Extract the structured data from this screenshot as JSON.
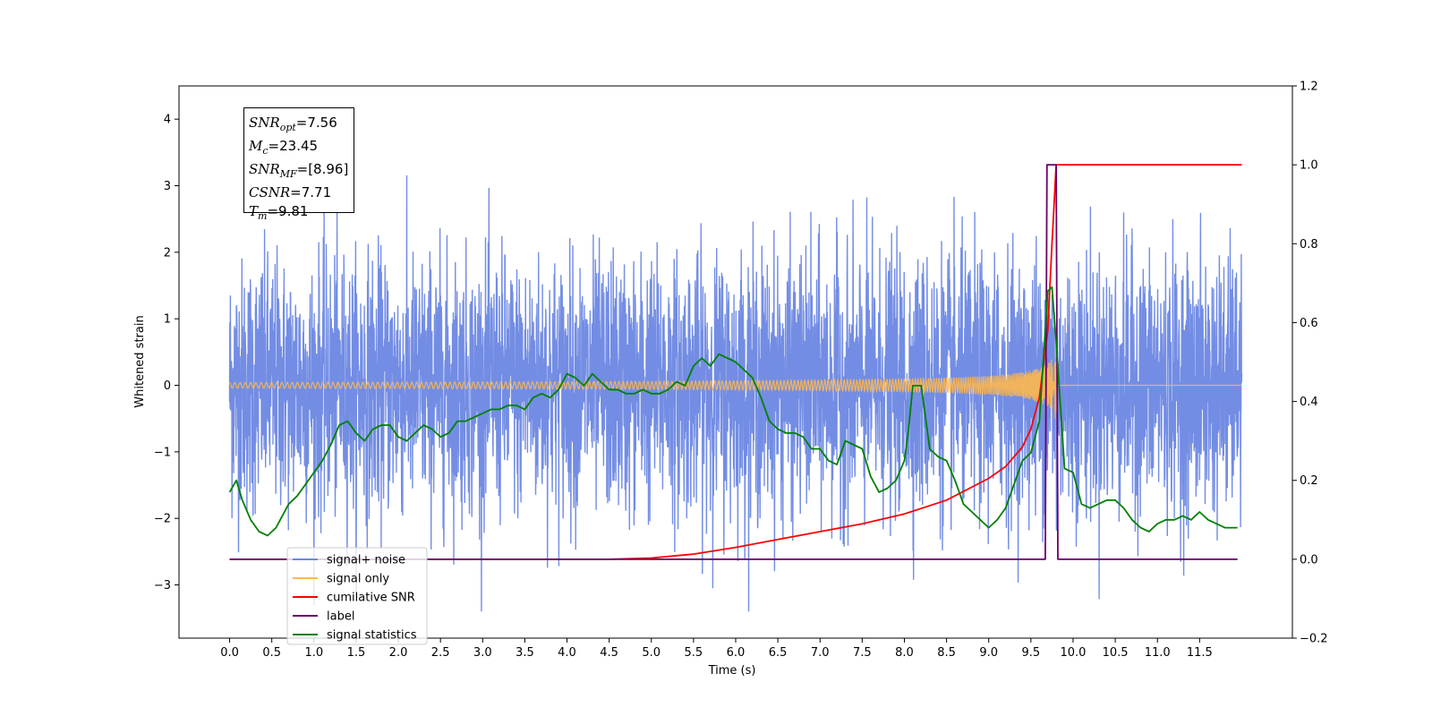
{
  "chart_data": {
    "type": "line",
    "xlabel": "Time (s)",
    "ylabel_left": "Whitened strain",
    "x_ticks": [
      0.0,
      0.5,
      1.0,
      1.5,
      2.0,
      2.5,
      3.0,
      3.5,
      4.0,
      4.5,
      5.0,
      5.5,
      6.0,
      6.5,
      7.0,
      7.5,
      8.0,
      8.5,
      9.0,
      9.5,
      10.0,
      10.5,
      11.0,
      11.5
    ],
    "x_tick_labels": [
      "0.0",
      "0.5",
      "1.0",
      "1.5",
      "2.0",
      "2.5",
      "3.0",
      "3.5",
      "4.0",
      "4.5",
      "5.0",
      "5.5",
      "6.0",
      "6.5",
      "7.0",
      "7.5",
      "8.0",
      "8.5",
      "9.0",
      "9.5",
      "10.0",
      "10.5",
      "11.0",
      "11.5"
    ],
    "xlim": [
      -0.6,
      12.6
    ],
    "y_left_ticks": [
      -3,
      -2,
      -1,
      0,
      1,
      2,
      3,
      4
    ],
    "y_left_tick_labels": [
      "−3",
      "−2",
      "−1",
      "0",
      "1",
      "2",
      "3",
      "4"
    ],
    "y_left_lim": [
      -3.8,
      4.5
    ],
    "y_right_ticks": [
      -0.2,
      0.0,
      0.2,
      0.4,
      0.6,
      0.8,
      1.0,
      1.2
    ],
    "y_right_tick_labels": [
      "−0.2",
      "0.0",
      "0.2",
      "0.4",
      "0.6",
      "0.8",
      "1.0",
      "1.2"
    ],
    "y_right_lim": [
      -0.2,
      1.2
    ],
    "legend": {
      "placement": "lower-left",
      "entries": [
        {
          "label": "signal+ noise",
          "color": "#6b87e3"
        },
        {
          "label": "signal only",
          "color": "#ffb74d"
        },
        {
          "label": "cumilative SNR",
          "color": "#ff0000"
        },
        {
          "label": "label",
          "color": "#6a006a"
        },
        {
          "label": "signal statistics",
          "color": "#008000"
        }
      ]
    },
    "annotation": {
      "snr_opt": "7.56",
      "mc": "23.45",
      "snr_mf": "[8.96]",
      "csnr": "7.71",
      "tm": "9.81"
    },
    "series": [
      {
        "name": "signal+ noise",
        "axis": "left",
        "color": "#6b87e3",
        "x_range": [
          0.0,
          12.0
        ],
        "min": -3.4,
        "max": 4.1
      },
      {
        "name": "signal only",
        "axis": "left",
        "color": "#ffb74d",
        "x_range": [
          0.0,
          12.0
        ],
        "peak_time": 9.81,
        "peak_amplitude": 0.6
      },
      {
        "name": "cumilative SNR",
        "axis": "right",
        "color": "#ff0000",
        "x": [
          0.0,
          4.5,
          5.0,
          5.5,
          6.0,
          6.5,
          7.0,
          7.5,
          8.0,
          8.5,
          9.0,
          9.2,
          9.4,
          9.5,
          9.6,
          9.7,
          9.75,
          9.8,
          12.0
        ],
        "y": [
          0.0,
          0.0,
          0.003,
          0.013,
          0.03,
          0.05,
          0.07,
          0.09,
          0.115,
          0.15,
          0.205,
          0.235,
          0.285,
          0.33,
          0.41,
          0.58,
          0.8,
          1.0,
          1.0
        ]
      },
      {
        "name": "label",
        "axis": "right",
        "color": "#6a006a",
        "x": [
          0.0,
          9.67,
          9.69,
          9.8,
          9.82,
          11.95
        ],
        "y": [
          0.0,
          0.0,
          1.0,
          1.0,
          0.0,
          0.0
        ]
      },
      {
        "name": "signal statistics",
        "axis": "right",
        "color": "#008000",
        "x": [
          0.0,
          0.08,
          0.15,
          0.25,
          0.35,
          0.45,
          0.55,
          0.6,
          0.7,
          0.8,
          0.9,
          1.0,
          1.1,
          1.2,
          1.3,
          1.4,
          1.5,
          1.6,
          1.7,
          1.8,
          1.9,
          2.0,
          2.1,
          2.2,
          2.3,
          2.4,
          2.5,
          2.6,
          2.7,
          2.8,
          2.9,
          3.0,
          3.1,
          3.2,
          3.3,
          3.4,
          3.5,
          3.6,
          3.7,
          3.8,
          3.9,
          4.0,
          4.1,
          4.2,
          4.3,
          4.4,
          4.5,
          4.6,
          4.7,
          4.8,
          4.9,
          5.0,
          5.1,
          5.2,
          5.3,
          5.4,
          5.5,
          5.6,
          5.7,
          5.8,
          5.9,
          6.0,
          6.1,
          6.2,
          6.3,
          6.4,
          6.5,
          6.6,
          6.7,
          6.8,
          6.9,
          7.0,
          7.1,
          7.2,
          7.3,
          7.4,
          7.5,
          7.6,
          7.7,
          7.8,
          7.9,
          8.0,
          8.05,
          8.1,
          8.2,
          8.3,
          8.4,
          8.5,
          8.6,
          8.7,
          8.8,
          8.9,
          9.0,
          9.1,
          9.2,
          9.3,
          9.4,
          9.5,
          9.6,
          9.7,
          9.75,
          9.8,
          9.9,
          10.0,
          10.1,
          10.2,
          10.3,
          10.4,
          10.5,
          10.6,
          10.7,
          10.8,
          10.9,
          11.0,
          11.1,
          11.2,
          11.3,
          11.4,
          11.5,
          11.6,
          11.7,
          11.8,
          11.9,
          11.95
        ],
        "y": [
          0.17,
          0.2,
          0.15,
          0.1,
          0.07,
          0.06,
          0.08,
          0.1,
          0.14,
          0.16,
          0.19,
          0.22,
          0.25,
          0.29,
          0.34,
          0.35,
          0.32,
          0.3,
          0.33,
          0.34,
          0.34,
          0.31,
          0.3,
          0.32,
          0.34,
          0.33,
          0.31,
          0.32,
          0.35,
          0.35,
          0.36,
          0.37,
          0.38,
          0.38,
          0.39,
          0.39,
          0.38,
          0.41,
          0.42,
          0.41,
          0.43,
          0.47,
          0.46,
          0.44,
          0.47,
          0.45,
          0.43,
          0.43,
          0.42,
          0.42,
          0.43,
          0.42,
          0.42,
          0.43,
          0.45,
          0.44,
          0.49,
          0.51,
          0.49,
          0.52,
          0.51,
          0.5,
          0.48,
          0.46,
          0.41,
          0.35,
          0.33,
          0.32,
          0.32,
          0.31,
          0.28,
          0.28,
          0.25,
          0.24,
          0.3,
          0.29,
          0.28,
          0.21,
          0.17,
          0.18,
          0.2,
          0.25,
          0.33,
          0.44,
          0.44,
          0.28,
          0.26,
          0.25,
          0.2,
          0.14,
          0.12,
          0.1,
          0.08,
          0.1,
          0.13,
          0.19,
          0.25,
          0.27,
          0.35,
          0.68,
          0.69,
          0.55,
          0.23,
          0.22,
          0.14,
          0.13,
          0.14,
          0.15,
          0.15,
          0.13,
          0.1,
          0.08,
          0.07,
          0.09,
          0.1,
          0.1,
          0.11,
          0.1,
          0.12,
          0.1,
          0.09,
          0.08,
          0.08,
          0.08
        ]
      }
    ]
  }
}
